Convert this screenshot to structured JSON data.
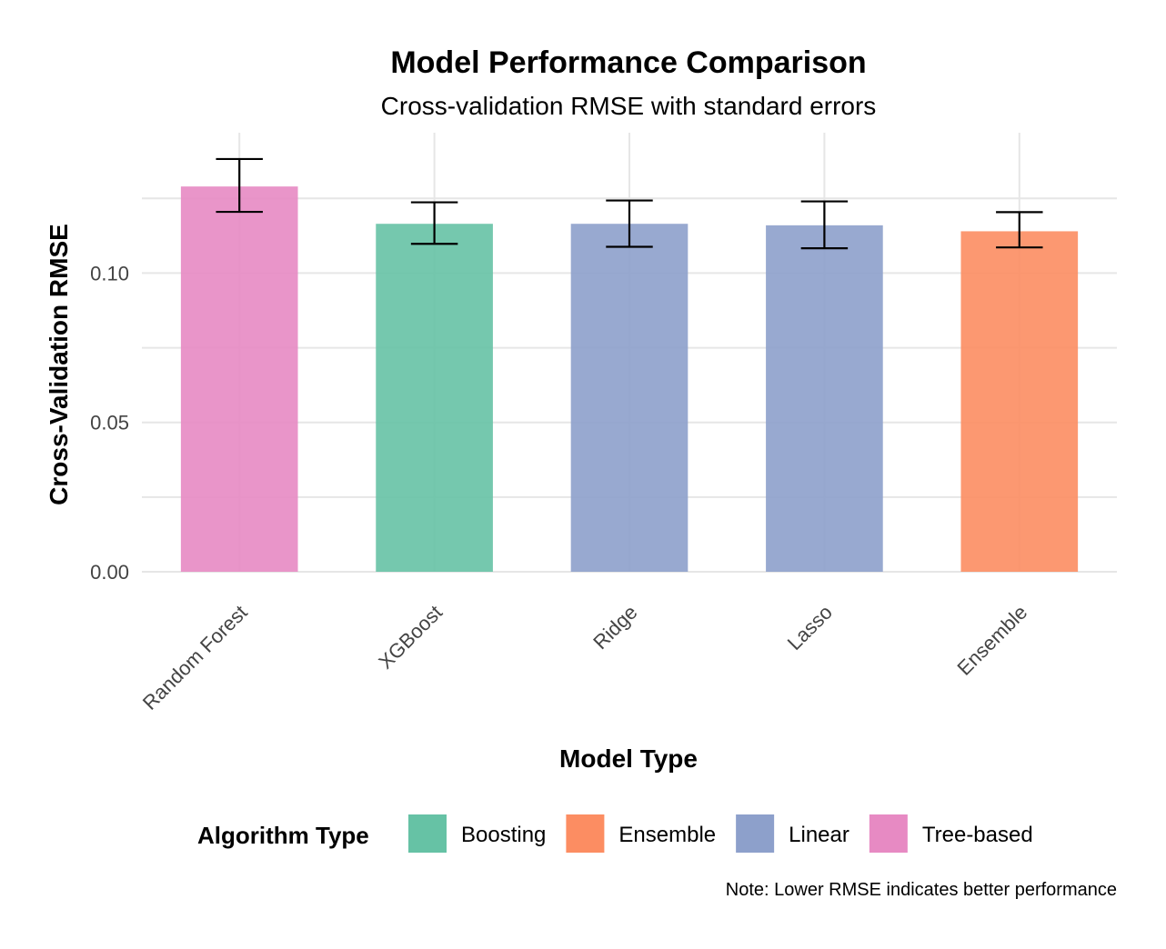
{
  "chart_data": {
    "type": "bar",
    "title": "Model Performance Comparison",
    "subtitle": "Cross-validation RMSE with standard errors",
    "xlabel": "Model Type",
    "ylabel": "Cross-Validation RMSE",
    "caption": "Note: Lower RMSE indicates better performance",
    "ylim": [
      0,
      0.147
    ],
    "yticks": [
      0.0,
      0.05,
      0.1
    ],
    "ytick_labels": [
      "0.00",
      "0.05",
      "0.10"
    ],
    "grid": true,
    "legend_position": "bottom",
    "categories": [
      "Random Forest",
      "XGBoost",
      "Ridge",
      "Lasso",
      "Ensemble"
    ],
    "values": [
      0.129,
      0.1165,
      0.1165,
      0.116,
      0.114
    ],
    "error_low": [
      0.1205,
      0.1098,
      0.1088,
      0.1083,
      0.1086
    ],
    "error_high": [
      0.1382,
      0.1237,
      0.1243,
      0.124,
      0.1204
    ],
    "groups": [
      "Tree-based",
      "Boosting",
      "Linear",
      "Linear",
      "Ensemble"
    ],
    "legend": {
      "title": "Algorithm Type",
      "entries": [
        {
          "name": "Boosting",
          "color": "#66c2a5"
        },
        {
          "name": "Ensemble",
          "color": "#fc8d62"
        },
        {
          "name": "Linear",
          "color": "#8da0cb"
        },
        {
          "name": "Tree-based",
          "color": "#e78ac3"
        }
      ]
    }
  }
}
